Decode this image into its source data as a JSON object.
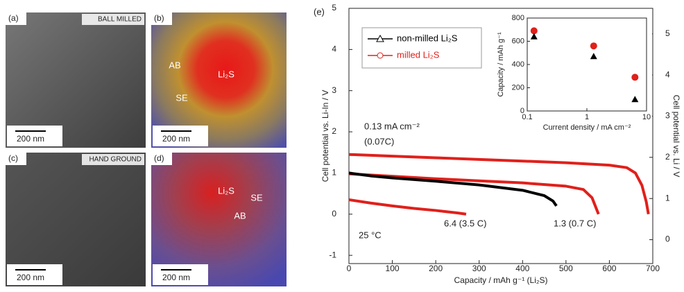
{
  "panels": [
    {
      "label": "(a)",
      "tag": "BALL MILLED",
      "scale": "200 nm"
    },
    {
      "label": "(b)",
      "scale": "200 nm",
      "regions": [
        "AB",
        "Li₂S",
        "SE"
      ]
    },
    {
      "label": "(c)",
      "tag": "HAND GROUND",
      "scale": "200 nm"
    },
    {
      "label": "(d)",
      "scale": "200 nm",
      "regions": [
        "Li₂S",
        "SE",
        "AB"
      ]
    }
  ],
  "chart_data": [
    {
      "type": "line",
      "panel": "(e)",
      "xlabel": "Capacity / mAh g⁻¹ (Li₂S)",
      "ylabel": "Cell potential vs. Li-In / V",
      "y2label": "Cell potential vs. Li / V",
      "xlim": [
        0,
        700
      ],
      "xticks": [
        0,
        100,
        200,
        300,
        400,
        500,
        600,
        700
      ],
      "ylim": [
        -1.2,
        5
      ],
      "yticks": [
        -1,
        0,
        1,
        2,
        3,
        4,
        5
      ],
      "y2lim": [
        -0.58,
        5.62
      ],
      "y2ticks": [
        0,
        1,
        2,
        3,
        4,
        5
      ],
      "legend": [
        {
          "name": "non-milled Li₂S",
          "color": "#000000",
          "marker": "triangle"
        },
        {
          "name": "milled Li₂S",
          "color": "#e0201b",
          "marker": "circle"
        }
      ],
      "annotations": [
        "0.13 mA cm⁻²",
        "(0.07C)",
        "6.4 (3.5 C)",
        "1.3 (0.7 C)",
        "25 °C"
      ],
      "series": [
        {
          "color": "#e0201b",
          "x": [
            0,
            50,
            100,
            200,
            300,
            400,
            500,
            600,
            640,
            660,
            675,
            685,
            690
          ],
          "values": [
            1.45,
            1.43,
            1.41,
            1.37,
            1.33,
            1.29,
            1.25,
            1.19,
            1.13,
            1.0,
            0.7,
            0.3,
            0.0
          ]
        },
        {
          "color": "#e0201b",
          "x": [
            0,
            100,
            200,
            300,
            400,
            500,
            540,
            560,
            575
          ],
          "values": [
            0.98,
            0.92,
            0.86,
            0.81,
            0.76,
            0.68,
            0.6,
            0.4,
            0.0
          ]
        },
        {
          "color": "#000000",
          "x": [
            0,
            50,
            100,
            200,
            300,
            400,
            450,
            470,
            478
          ],
          "values": [
            1.0,
            0.93,
            0.88,
            0.8,
            0.71,
            0.58,
            0.45,
            0.32,
            0.2
          ]
        },
        {
          "color": "#e0201b",
          "x": [
            0,
            50,
            100,
            150,
            200,
            250,
            270
          ],
          "values": [
            0.35,
            0.27,
            0.2,
            0.14,
            0.09,
            0.03,
            0.0
          ]
        }
      ]
    },
    {
      "type": "scatter",
      "xlabel": "Current density / mA cm⁻²",
      "ylabel": "Capacity / mAh g⁻¹",
      "xscale": "log",
      "xlim": [
        0.1,
        10
      ],
      "xticks": [
        {
          "value": 0.1,
          "label": "0.1"
        },
        1,
        10
      ],
      "ylim": [
        0,
        800
      ],
      "yticks": [
        0,
        200,
        400,
        600,
        800
      ],
      "series": [
        {
          "color": "#e0201b",
          "marker": "circle",
          "x": [
            0.13,
            1.3,
            6.4
          ],
          "values": [
            690,
            560,
            290
          ]
        },
        {
          "color": "#000000",
          "marker": "triangle",
          "x": [
            0.13,
            1.3,
            6.4
          ],
          "values": [
            640,
            470,
            100
          ]
        }
      ]
    }
  ]
}
